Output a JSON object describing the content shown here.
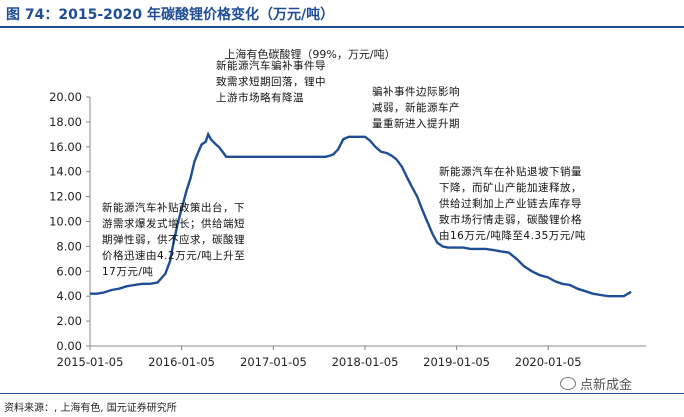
{
  "figure": {
    "title": "图 74：2015-2020 年碳酸锂价格变化（万元/吨）",
    "source": "资料来源：, 上海有色, 国元证券研究所",
    "watermark": "点新成金"
  },
  "annotations": [
    "新能源汽车补贴政策出台，下\n游需求爆发式增长；供给端短\n期弹性弱，供不应求，碳酸锂\n价格迅速由4.2万元/吨上升至\n17万元/吨",
    "新能源汽车骗补事件导\n致需求短期回落，锂中\n上游市场略有降温",
    "骗补事件边际影响\n减弱，新能源车产\n量重新进入提升期",
    "新能源汽车在补贴退坡下销量\n下降，而矿山产能加速释放，\n供给过剩加上产业链去库存导\n致市场行情走弱，碳酸锂价格\n由16万元/吨降至4.35万元/吨"
  ],
  "chart_data": {
    "type": "line",
    "title": "上海有色碳酸锂（99%，万元/吨）",
    "xlabel": "",
    "ylabel": "",
    "ylim": [
      0,
      20
    ],
    "yticks": [
      "0.00",
      "2.00",
      "4.00",
      "6.00",
      "8.00",
      "10.00",
      "12.00",
      "14.00",
      "16.00",
      "18.00",
      "20.00"
    ],
    "xticks": [
      "2015-01-05",
      "2016-01-05",
      "2017-01-05",
      "2018-01-05",
      "2019-01-05",
      "2020-01-05"
    ],
    "grid": false,
    "line_color": "#1f4e96",
    "series": [
      {
        "x": [
          "2015-01-05",
          "2015-02-01",
          "2015-03-01",
          "2015-04-01",
          "2015-05-01",
          "2015-06-01",
          "2015-07-01",
          "2015-08-01",
          "2015-09-01",
          "2015-10-01",
          "2015-11-01",
          "2015-11-20",
          "2015-12-01",
          "2015-12-20",
          "2016-01-05",
          "2016-01-25",
          "2016-02-10",
          "2016-02-25",
          "2016-03-10",
          "2016-03-25",
          "2016-04-10",
          "2016-04-20",
          "2016-05-01",
          "2016-05-20",
          "2016-06-01",
          "2016-06-20",
          "2016-07-01",
          "2016-08-01",
          "2016-09-01",
          "2016-10-01",
          "2016-11-01",
          "2016-12-01",
          "2017-01-05",
          "2017-02-01",
          "2017-03-01",
          "2017-04-01",
          "2017-05-01",
          "2017-06-01",
          "2017-07-01",
          "2017-08-01",
          "2017-08-20",
          "2017-09-01",
          "2017-09-20",
          "2017-10-10",
          "2017-11-01",
          "2017-12-01",
          "2018-01-05",
          "2018-01-25",
          "2018-02-15",
          "2018-03-10",
          "2018-04-01",
          "2018-04-20",
          "2018-05-10",
          "2018-06-01",
          "2018-06-20",
          "2018-07-10",
          "2018-08-01",
          "2018-08-20",
          "2018-09-10",
          "2018-10-01",
          "2018-10-20",
          "2018-11-10",
          "2018-12-01",
          "2019-01-05",
          "2019-02-01",
          "2019-03-01",
          "2019-04-01",
          "2019-05-01",
          "2019-06-01",
          "2019-07-01",
          "2019-08-01",
          "2019-09-01",
          "2019-10-01",
          "2019-11-01",
          "2019-12-01",
          "2020-01-05",
          "2020-02-01",
          "2020-03-01",
          "2020-04-01",
          "2020-05-01",
          "2020-06-01",
          "2020-07-01",
          "2020-08-01",
          "2020-09-01",
          "2020-10-01",
          "2020-11-01",
          "2020-12-01"
        ],
        "values": [
          4.2,
          4.2,
          4.3,
          4.5,
          4.6,
          4.8,
          4.9,
          5.0,
          5.0,
          5.1,
          5.8,
          6.8,
          8.0,
          9.8,
          11.0,
          12.5,
          13.5,
          14.8,
          15.5,
          16.2,
          16.4,
          17.0,
          16.6,
          16.2,
          16.0,
          15.5,
          15.2,
          15.2,
          15.2,
          15.2,
          15.2,
          15.2,
          15.2,
          15.2,
          15.2,
          15.2,
          15.2,
          15.2,
          15.2,
          15.2,
          15.3,
          15.4,
          15.8,
          16.6,
          16.8,
          16.8,
          16.8,
          16.5,
          16.0,
          15.6,
          15.5,
          15.3,
          15.0,
          14.4,
          13.6,
          12.8,
          12.0,
          11.0,
          10.0,
          9.0,
          8.3,
          8.0,
          7.9,
          7.9,
          7.9,
          7.8,
          7.8,
          7.8,
          7.7,
          7.6,
          7.5,
          7.0,
          6.4,
          6.0,
          5.7,
          5.5,
          5.2,
          5.0,
          4.9,
          4.6,
          4.4,
          4.2,
          4.1,
          4.0,
          4.0,
          4.0,
          4.35
        ]
      }
    ]
  }
}
